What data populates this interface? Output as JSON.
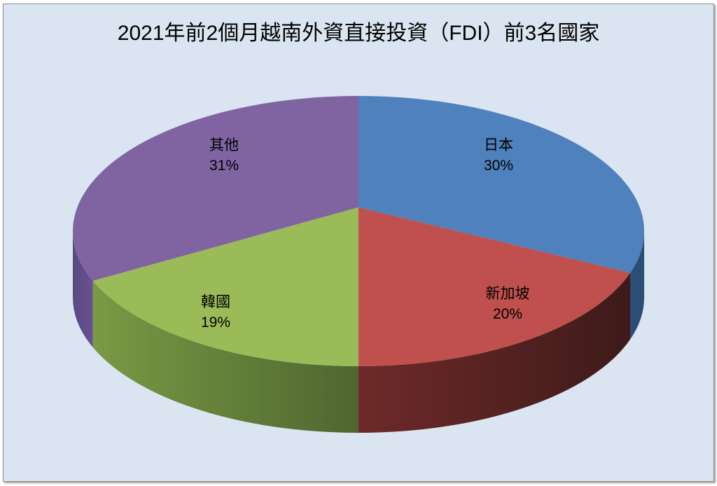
{
  "chart_data": {
    "type": "pie",
    "variant": "3d",
    "title": "2021年前2個月越南外資直接投資（FDI）前3名國家",
    "categories": [
      "日本",
      "新加坡",
      "韓國",
      "其他"
    ],
    "values": [
      30,
      20,
      19,
      31
    ],
    "labels": [
      "30%",
      "20%",
      "19%",
      "31%"
    ],
    "colors": [
      "#4f81bd",
      "#c0504d",
      "#9bbb59",
      "#8064a2"
    ],
    "side_colors": [
      "#2c4d75",
      "#5e2424",
      "#5c7033",
      "#4b3a63"
    ],
    "legend": "none",
    "data_labels": "category name and percentage"
  },
  "chart": {
    "title": "2021年前2個月越南外資直接投資（FDI）前3名國家",
    "background": "#dbe5f1"
  }
}
